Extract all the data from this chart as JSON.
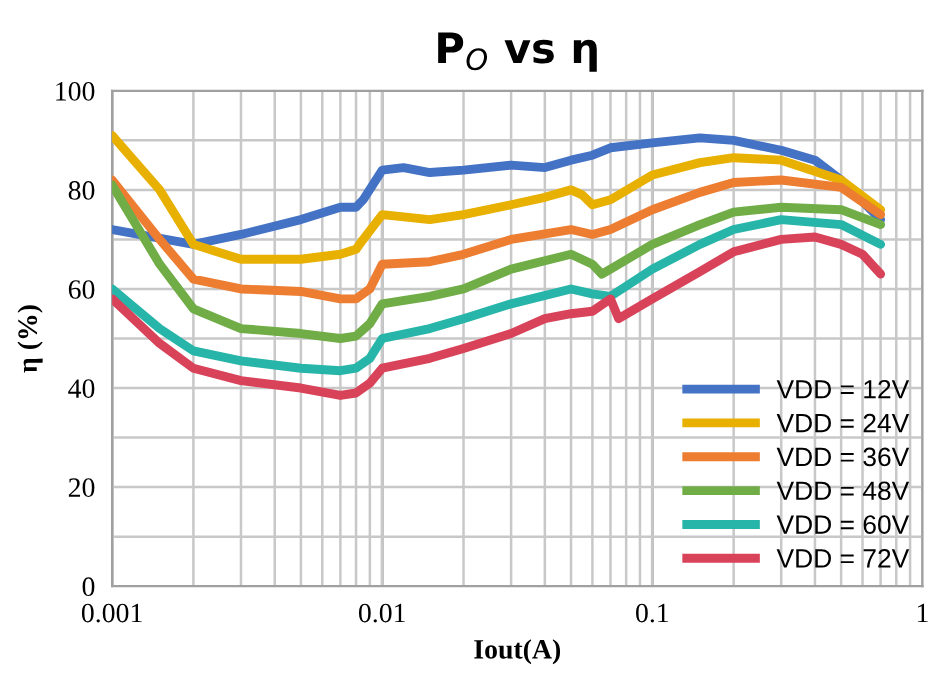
{
  "chart_data": {
    "type": "line",
    "title": "P$_{O}$ vs η",
    "xlabel": "Iout(A)",
    "ylabel": "η (%)",
    "log": "x",
    "grid": true,
    "legend": "bottom right",
    "marker": "none",
    "line_style": "solid",
    "xlim": [
      0.001,
      1
    ],
    "ylim": [
      0,
      100
    ],
    "xticks": [
      0.001,
      {
        "value": 0.002,
        "label": null
      },
      {
        "value": 0.003,
        "label": null
      },
      {
        "value": 0.004,
        "label": null
      },
      {
        "value": 0.005,
        "label": null
      },
      {
        "value": 0.006,
        "label": null
      },
      {
        "value": 0.007,
        "label": null
      },
      {
        "value": 0.008,
        "label": null
      },
      {
        "value": 0.009,
        "label": null
      },
      0.01,
      {
        "value": 0.02,
        "label": null
      },
      {
        "value": 0.03,
        "label": null
      },
      {
        "value": 0.04,
        "label": null
      },
      {
        "value": 0.05,
        "label": null
      },
      {
        "value": 0.06,
        "label": null
      },
      {
        "value": 0.07,
        "label": null
      },
      {
        "value": 0.08,
        "label": null
      },
      {
        "value": 0.09,
        "label": null
      },
      0.1,
      {
        "value": 0.2,
        "label": null
      },
      {
        "value": 0.3,
        "label": null
      },
      {
        "value": 0.4,
        "label": null
      },
      {
        "value": 0.5,
        "label": null
      },
      {
        "value": 0.6,
        "label": null
      },
      {
        "value": 0.7,
        "label": null
      },
      {
        "value": 0.8,
        "label": null
      },
      {
        "value": 0.9,
        "label": null
      },
      1
    ],
    "yticks": [
      0,
      {
        "value": 10,
        "label": null
      },
      20,
      {
        "value": 30,
        "label": null
      },
      40,
      {
        "value": 50,
        "label": null
      },
      60,
      {
        "value": 70,
        "label": null
      },
      80,
      {
        "value": 90,
        "label": null
      },
      100
    ],
    "series": [
      {
        "name": "VDD = 12V",
        "color": "#4472c4",
        "x": [
          0.001,
          0.002,
          0.003,
          0.005,
          0.007,
          0.008,
          0.0085,
          0.01,
          0.012,
          0.015,
          0.02,
          0.03,
          0.04,
          0.05,
          0.06,
          0.07,
          0.1,
          0.15,
          0.2,
          0.3,
          0.4,
          0.5,
          0.7
        ],
        "values": [
          72,
          69,
          71,
          74,
          76.5,
          76.5,
          78,
          84,
          84.5,
          83.5,
          84,
          85,
          84.5,
          86,
          87,
          88.5,
          89.5,
          90.5,
          90,
          88,
          86,
          82,
          74
        ]
      },
      {
        "name": "VDD = 24V",
        "color": "#e8b000",
        "x": [
          0.001,
          0.0015,
          0.002,
          0.003,
          0.005,
          0.007,
          0.008,
          0.0085,
          0.01,
          0.015,
          0.02,
          0.03,
          0.04,
          0.05,
          0.055,
          0.06,
          0.07,
          0.1,
          0.15,
          0.2,
          0.3,
          0.5,
          0.7
        ],
        "values": [
          91,
          80,
          69,
          66,
          66,
          67,
          68,
          70,
          75,
          74,
          75,
          77,
          78.5,
          80,
          79,
          77,
          78,
          83,
          85.5,
          86.5,
          86,
          82,
          76
        ]
      },
      {
        "name": "VDD = 36V",
        "color": "#ed7d31",
        "x": [
          0.001,
          0.0015,
          0.002,
          0.003,
          0.005,
          0.007,
          0.008,
          0.009,
          0.01,
          0.015,
          0.02,
          0.03,
          0.05,
          0.06,
          0.07,
          0.1,
          0.15,
          0.2,
          0.3,
          0.5,
          0.7
        ],
        "values": [
          82,
          70,
          62,
          60,
          59.5,
          58,
          58,
          60,
          65,
          65.5,
          67,
          70,
          72,
          71,
          72,
          76,
          79.5,
          81.5,
          82,
          80.5,
          75
        ]
      },
      {
        "name": "VDD = 48V",
        "color": "#70ad47",
        "x": [
          0.001,
          0.0015,
          0.002,
          0.003,
          0.005,
          0.007,
          0.008,
          0.009,
          0.01,
          0.015,
          0.02,
          0.03,
          0.05,
          0.06,
          0.065,
          0.07,
          0.1,
          0.15,
          0.2,
          0.3,
          0.5,
          0.7
        ],
        "values": [
          81,
          65,
          56,
          52,
          51,
          50,
          50.5,
          53,
          57,
          58.5,
          60,
          64,
          67,
          65,
          63,
          64,
          69,
          73,
          75.5,
          76.5,
          76,
          73
        ]
      },
      {
        "name": "VDD = 60V",
        "color": "#26b5a8",
        "x": [
          0.001,
          0.0015,
          0.002,
          0.003,
          0.005,
          0.007,
          0.008,
          0.009,
          0.01,
          0.015,
          0.02,
          0.03,
          0.05,
          0.06,
          0.07,
          0.1,
          0.15,
          0.2,
          0.3,
          0.5,
          0.7
        ],
        "values": [
          60,
          52,
          47.5,
          45.5,
          44,
          43.5,
          44,
          46,
          50,
          52,
          54,
          57,
          60,
          59,
          58.5,
          64,
          69,
          72,
          74,
          73,
          69
        ]
      },
      {
        "name": "VDD = 72V",
        "color": "#d9435a",
        "x": [
          0.001,
          0.0015,
          0.002,
          0.003,
          0.005,
          0.007,
          0.008,
          0.009,
          0.01,
          0.015,
          0.02,
          0.03,
          0.04,
          0.05,
          0.06,
          0.07,
          0.075,
          0.1,
          0.15,
          0.2,
          0.3,
          0.4,
          0.5,
          0.6,
          0.7
        ],
        "values": [
          58,
          49,
          44,
          41.5,
          40,
          38.5,
          39,
          41,
          44,
          46,
          48,
          51,
          54,
          55,
          55.5,
          58,
          54,
          58,
          63.5,
          67.5,
          70,
          70.5,
          69,
          67,
          63
        ]
      }
    ]
  }
}
